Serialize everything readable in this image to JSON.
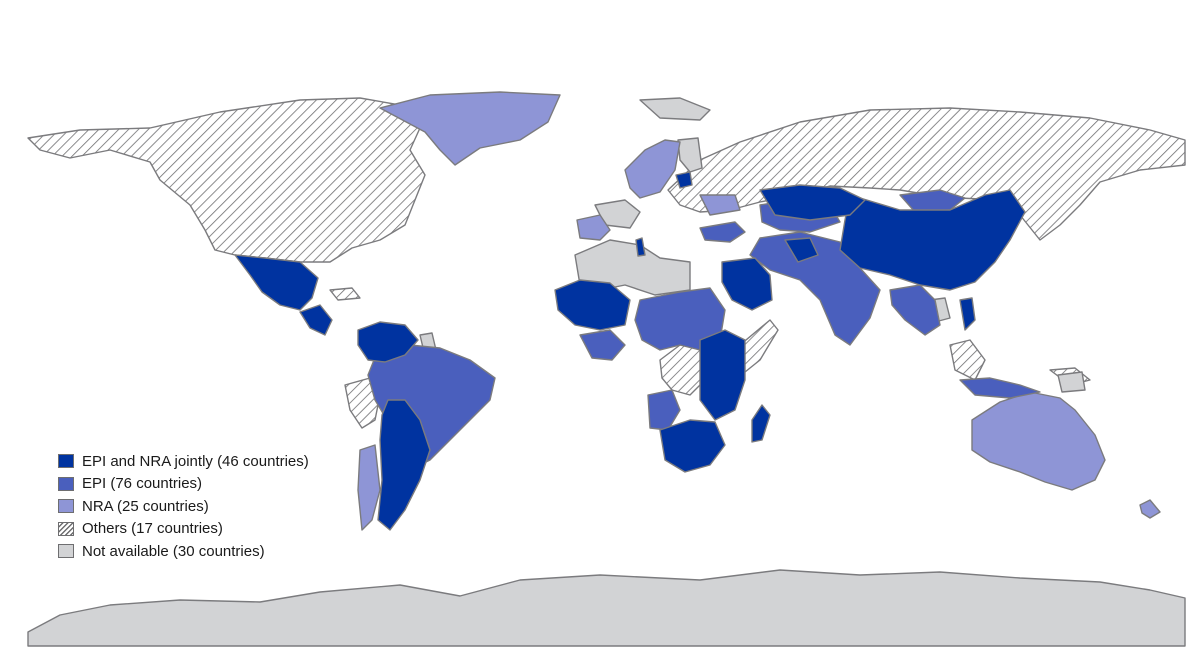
{
  "colors": {
    "epi_and_nra": "#0033a0",
    "epi": "#4a5fbd",
    "nra": "#8e95d6",
    "others_hatch": "#7b7b7e",
    "not_available": "#d2d3d5",
    "border": "#7b7b7e"
  },
  "legend": [
    {
      "category": "epi_and_nra",
      "label": "EPI and NRA jointly (46 countries)"
    },
    {
      "category": "epi",
      "label": "EPI (76 countries)"
    },
    {
      "category": "nra",
      "label": "NRA (25 countries)"
    },
    {
      "category": "others",
      "label": "Others (17 countries)"
    },
    {
      "category": "not_available",
      "label": "Not available (30 countries)"
    }
  ]
}
